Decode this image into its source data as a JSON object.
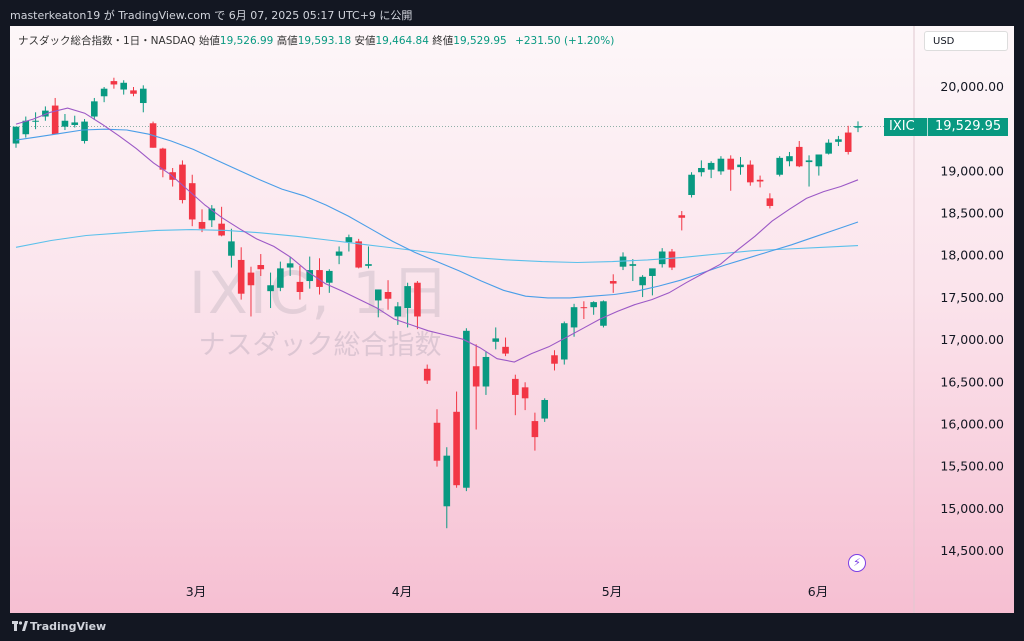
{
  "published_line": "masterkeaton19 が TradingView.com で 6月 07, 2025 05:17 UTC+9 に公開",
  "header": {
    "instrument": "ナスダック総合指数・1日・NASDAQ",
    "open_label": "始値",
    "open_value": "19,526.99",
    "high_label": "高値",
    "high_value": "19,593.18",
    "low_label": "安値",
    "low_value": "19,464.84",
    "close_label": "終値",
    "close_value": "19,529.95",
    "change": "+231.50 (+1.20%)"
  },
  "currency": "USD",
  "watermark": {
    "ticker": "IXIC, 1日",
    "name": "ナスダック総合指数"
  },
  "last_price_tag": {
    "symbol": "IXIC",
    "price": "19,529.95"
  },
  "footer": {
    "brand": "TradingView"
  },
  "colors": {
    "up": "#089981",
    "down": "#f23645",
    "ma_short": "#9c59c6",
    "ma_mid": "#4a9ee8",
    "ma_long": "#5bc0eb"
  },
  "chart_data": {
    "type": "candlestick",
    "y_axis_ticks": [
      "20,000.00",
      "19,500.00",
      "19,000.00",
      "18,500.00",
      "18,000.00",
      "17,500.00",
      "17,000.00",
      "16,500.00",
      "16,000.00",
      "15,500.00",
      "15,000.00",
      "14,500.00"
    ],
    "ylim": [
      14300,
      20550
    ],
    "x_axis_labels": [
      "3月",
      "4月",
      "5月",
      "6月"
    ],
    "candles": [
      {
        "o": 19330,
        "h": 19520,
        "l": 19280,
        "c": 19530
      },
      {
        "o": 19440,
        "h": 19650,
        "l": 19400,
        "c": 19600
      },
      {
        "o": 19590,
        "h": 19700,
        "l": 19500,
        "c": 19600
      },
      {
        "o": 19650,
        "h": 19770,
        "l": 19600,
        "c": 19720
      },
      {
        "o": 19780,
        "h": 19870,
        "l": 19450,
        "c": 19440
      },
      {
        "o": 19530,
        "h": 19680,
        "l": 19490,
        "c": 19600
      },
      {
        "o": 19550,
        "h": 19660,
        "l": 19520,
        "c": 19580
      },
      {
        "o": 19360,
        "h": 19620,
        "l": 19330,
        "c": 19590
      },
      {
        "o": 19650,
        "h": 19870,
        "l": 19610,
        "c": 19830
      },
      {
        "o": 19890,
        "h": 20000,
        "l": 19820,
        "c": 19980
      },
      {
        "o": 20070,
        "h": 20110,
        "l": 19980,
        "c": 20030
      },
      {
        "o": 19970,
        "h": 20080,
        "l": 19910,
        "c": 20050
      },
      {
        "o": 19960,
        "h": 20000,
        "l": 19890,
        "c": 19920
      },
      {
        "o": 19810,
        "h": 20020,
        "l": 19700,
        "c": 19980
      },
      {
        "o": 19570,
        "h": 19590,
        "l": 19280,
        "c": 19280
      },
      {
        "o": 19270,
        "h": 19280,
        "l": 18930,
        "c": 19020
      },
      {
        "o": 18990,
        "h": 19040,
        "l": 18820,
        "c": 18900
      },
      {
        "o": 19080,
        "h": 19130,
        "l": 18620,
        "c": 18660
      },
      {
        "o": 18860,
        "h": 18960,
        "l": 18350,
        "c": 18430
      },
      {
        "o": 18400,
        "h": 18550,
        "l": 18280,
        "c": 18320
      },
      {
        "o": 18420,
        "h": 18600,
        "l": 18340,
        "c": 18560
      },
      {
        "o": 18380,
        "h": 18580,
        "l": 18230,
        "c": 18240
      },
      {
        "o": 18000,
        "h": 18320,
        "l": 17860,
        "c": 18170
      },
      {
        "o": 17950,
        "h": 18100,
        "l": 17480,
        "c": 17550
      },
      {
        "o": 17800,
        "h": 17870,
        "l": 17280,
        "c": 17650
      },
      {
        "o": 17890,
        "h": 18020,
        "l": 17760,
        "c": 17840
      },
      {
        "o": 17580,
        "h": 17800,
        "l": 17380,
        "c": 17650
      },
      {
        "o": 17620,
        "h": 17930,
        "l": 17580,
        "c": 17850
      },
      {
        "o": 17860,
        "h": 17990,
        "l": 17760,
        "c": 17910
      },
      {
        "o": 17690,
        "h": 17880,
        "l": 17480,
        "c": 17570
      },
      {
        "o": 17700,
        "h": 17990,
        "l": 17610,
        "c": 17830
      },
      {
        "o": 17830,
        "h": 17970,
        "l": 17540,
        "c": 17630
      },
      {
        "o": 17680,
        "h": 17840,
        "l": 17560,
        "c": 17820
      },
      {
        "o": 18000,
        "h": 18110,
        "l": 17900,
        "c": 18050
      },
      {
        "o": 18160,
        "h": 18250,
        "l": 18050,
        "c": 18220
      },
      {
        "o": 18170,
        "h": 18200,
        "l": 17850,
        "c": 17860
      },
      {
        "o": 17880,
        "h": 18110,
        "l": 17850,
        "c": 17900
      },
      {
        "o": 17470,
        "h": 17600,
        "l": 17270,
        "c": 17600
      },
      {
        "o": 17570,
        "h": 17710,
        "l": 17360,
        "c": 17490
      },
      {
        "o": 17280,
        "h": 17450,
        "l": 17180,
        "c": 17400
      },
      {
        "o": 17380,
        "h": 17680,
        "l": 17150,
        "c": 17640
      },
      {
        "o": 17680,
        "h": 17700,
        "l": 17130,
        "c": 17280
      },
      {
        "o": 16660,
        "h": 16710,
        "l": 16480,
        "c": 16520
      },
      {
        "o": 16020,
        "h": 16180,
        "l": 15500,
        "c": 15570
      },
      {
        "o": 15030,
        "h": 15730,
        "l": 14770,
        "c": 15630
      },
      {
        "o": 16150,
        "h": 16390,
        "l": 15250,
        "c": 15280
      },
      {
        "o": 15250,
        "h": 17140,
        "l": 15210,
        "c": 17110
      },
      {
        "o": 16690,
        "h": 16950,
        "l": 15940,
        "c": 16450
      },
      {
        "o": 16450,
        "h": 16870,
        "l": 16350,
        "c": 16800
      },
      {
        "o": 16980,
        "h": 17150,
        "l": 16890,
        "c": 17020
      },
      {
        "o": 16920,
        "h": 17030,
        "l": 16810,
        "c": 16840
      },
      {
        "o": 16540,
        "h": 16590,
        "l": 16110,
        "c": 16350
      },
      {
        "o": 16440,
        "h": 16500,
        "l": 16170,
        "c": 16310
      },
      {
        "o": 16040,
        "h": 16140,
        "l": 15690,
        "c": 15850
      },
      {
        "o": 16070,
        "h": 16310,
        "l": 16030,
        "c": 16290
      },
      {
        "o": 16820,
        "h": 16880,
        "l": 16640,
        "c": 16720
      },
      {
        "o": 16770,
        "h": 17220,
        "l": 16710,
        "c": 17200
      },
      {
        "o": 17150,
        "h": 17430,
        "l": 17040,
        "c": 17390
      },
      {
        "o": 17390,
        "h": 17460,
        "l": 17250,
        "c": 17380
      },
      {
        "o": 17390,
        "h": 17460,
        "l": 17300,
        "c": 17450
      },
      {
        "o": 17170,
        "h": 17470,
        "l": 17150,
        "c": 17460
      },
      {
        "o": 17700,
        "h": 17780,
        "l": 17560,
        "c": 17670
      },
      {
        "o": 17870,
        "h": 18040,
        "l": 17830,
        "c": 17990
      },
      {
        "o": 17880,
        "h": 17960,
        "l": 17700,
        "c": 17900
      },
      {
        "o": 17650,
        "h": 17770,
        "l": 17510,
        "c": 17750
      },
      {
        "o": 17760,
        "h": 17840,
        "l": 17530,
        "c": 17850
      },
      {
        "o": 17900,
        "h": 18090,
        "l": 17860,
        "c": 18050
      },
      {
        "o": 18050,
        "h": 18080,
        "l": 17830,
        "c": 17860
      },
      {
        "o": 18480,
        "h": 18530,
        "l": 18300,
        "c": 18450
      },
      {
        "o": 18720,
        "h": 18990,
        "l": 18690,
        "c": 18960
      },
      {
        "o": 18990,
        "h": 19130,
        "l": 18940,
        "c": 19040
      },
      {
        "o": 19020,
        "h": 19120,
        "l": 18920,
        "c": 19100
      },
      {
        "o": 19000,
        "h": 19180,
        "l": 18960,
        "c": 19150
      },
      {
        "o": 19150,
        "h": 19190,
        "l": 18770,
        "c": 19020
      },
      {
        "o": 19050,
        "h": 19170,
        "l": 18960,
        "c": 19080
      },
      {
        "o": 19080,
        "h": 19130,
        "l": 18830,
        "c": 18870
      },
      {
        "o": 18900,
        "h": 18950,
        "l": 18810,
        "c": 18880
      },
      {
        "o": 18680,
        "h": 18740,
        "l": 18560,
        "c": 18590
      },
      {
        "o": 18960,
        "h": 19180,
        "l": 18940,
        "c": 19160
      },
      {
        "o": 19120,
        "h": 19230,
        "l": 19060,
        "c": 19180
      },
      {
        "o": 19290,
        "h": 19360,
        "l": 19050,
        "c": 19060
      },
      {
        "o": 19110,
        "h": 19190,
        "l": 18820,
        "c": 19130
      },
      {
        "o": 19060,
        "h": 19200,
        "l": 18950,
        "c": 19200
      },
      {
        "o": 19210,
        "h": 19380,
        "l": 19200,
        "c": 19340
      },
      {
        "o": 19350,
        "h": 19420,
        "l": 19300,
        "c": 19380
      },
      {
        "o": 19460,
        "h": 19540,
        "l": 19200,
        "c": 19230
      },
      {
        "o": 19527,
        "h": 19593,
        "l": 19465,
        "c": 19530
      }
    ],
    "ma_short": [
      19560,
      19620,
      19700,
      19750,
      19690,
      19560,
      19420,
      19270,
      19100,
      18960,
      18780,
      18600,
      18450,
      18320,
      18200,
      18110,
      17980,
      17810,
      17670,
      17580,
      17480,
      17380,
      17250,
      17180,
      17110,
      17060,
      17010,
      16910,
      16780,
      16740,
      16840,
      16920,
      17030,
      17140,
      17250,
      17340,
      17420,
      17480,
      17560,
      17680,
      17790,
      17900,
      18070,
      18230,
      18410,
      18550,
      18680,
      18760,
      18820,
      18900
    ],
    "ma_mid": [
      19370,
      19410,
      19450,
      19490,
      19500,
      19490,
      19440,
      19360,
      19260,
      19140,
      19020,
      18900,
      18790,
      18710,
      18600,
      18470,
      18320,
      18170,
      18040,
      17930,
      17820,
      17700,
      17590,
      17520,
      17500,
      17500,
      17520,
      17540,
      17580,
      17640,
      17710,
      17800,
      17890,
      17970,
      18050,
      18130,
      18220,
      18310,
      18400
    ],
    "ma_long": [
      18100,
      18180,
      18240,
      18270,
      18300,
      18310,
      18300,
      18270,
      18230,
      18180,
      18130,
      18080,
      18030,
      17980,
      17950,
      17930,
      17920,
      17930,
      17950,
      17980,
      18020,
      18060,
      18080,
      18100,
      18120
    ]
  }
}
